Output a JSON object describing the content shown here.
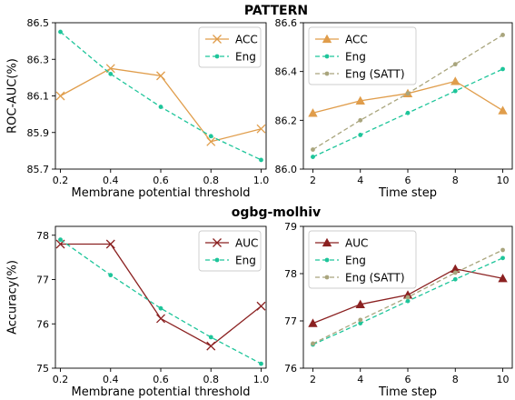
{
  "figure": {
    "row_titles": [
      "PATTERN",
      "ogbg-molhiv"
    ]
  },
  "colors": {
    "acc": "#e09d4b",
    "auc": "#8b2121",
    "eng": "#1ec59a",
    "eng_satt": "#a9a57d"
  },
  "chart_data": [
    {
      "type": "line",
      "panel": "top-left",
      "xlabel": "Membrane potential threshold",
      "ylabel": "ROC-AUC(%)",
      "x": [
        0.2,
        0.4,
        0.6,
        0.8,
        1.0
      ],
      "xticks": [
        "0.2",
        "0.4",
        "0.6",
        "0.8",
        "1.0"
      ],
      "xlim": [
        0.18,
        1.02
      ],
      "ylim": [
        85.7,
        86.5
      ],
      "yticks": [
        "85.7",
        "85.9",
        "86.1",
        "86.3",
        "86.5"
      ],
      "legend": "top-right",
      "series": [
        {
          "name": "ACC",
          "values": [
            86.1,
            86.25,
            86.21,
            85.85,
            85.92
          ],
          "color": "#e09d4b",
          "marker": "x",
          "dash": "solid"
        },
        {
          "name": "Eng",
          "values": [
            86.45,
            86.22,
            86.04,
            85.88,
            85.75
          ],
          "color": "#1ec59a",
          "marker": "dot",
          "dash": "dashed"
        }
      ]
    },
    {
      "type": "line",
      "panel": "top-right",
      "xlabel": "Time step",
      "ylabel": "",
      "x": [
        2,
        4,
        6,
        8,
        10
      ],
      "xticks": [
        "2",
        "4",
        "6",
        "8",
        "10"
      ],
      "xlim": [
        1.6,
        10.4
      ],
      "ylim": [
        86.0,
        86.6
      ],
      "yticks": [
        "86.0",
        "86.2",
        "86.4",
        "86.6"
      ],
      "legend": "top-left",
      "series": [
        {
          "name": "ACC",
          "values": [
            86.23,
            86.28,
            86.31,
            86.36,
            86.24
          ],
          "color": "#e09d4b",
          "marker": "triangle",
          "dash": "solid"
        },
        {
          "name": "Eng",
          "values": [
            86.05,
            86.14,
            86.23,
            86.32,
            86.41
          ],
          "color": "#1ec59a",
          "marker": "dot",
          "dash": "dashed"
        },
        {
          "name": "Eng (SATT)",
          "values": [
            86.08,
            86.2,
            86.31,
            86.43,
            86.55
          ],
          "color": "#a9a57d",
          "marker": "dot",
          "dash": "dashed"
        }
      ]
    },
    {
      "type": "line",
      "panel": "bottom-left",
      "xlabel": "Membrane potential threshold",
      "ylabel": "Accuracy(%)",
      "x": [
        0.2,
        0.4,
        0.6,
        0.8,
        1.0
      ],
      "xticks": [
        "0.2",
        "0.4",
        "0.6",
        "0.8",
        "1.0"
      ],
      "xlim": [
        0.18,
        1.02
      ],
      "ylim": [
        75,
        78.2
      ],
      "yticks": [
        "75",
        "76",
        "77",
        "78"
      ],
      "legend": "top-right",
      "series": [
        {
          "name": "AUC",
          "values": [
            77.8,
            77.8,
            76.12,
            75.5,
            76.4
          ],
          "color": "#8b2121",
          "marker": "x",
          "dash": "solid"
        },
        {
          "name": "Eng",
          "values": [
            77.9,
            77.1,
            76.35,
            75.7,
            75.1
          ],
          "color": "#1ec59a",
          "marker": "dot",
          "dash": "dashed"
        }
      ]
    },
    {
      "type": "line",
      "panel": "bottom-right",
      "xlabel": "Time step",
      "ylabel": "",
      "x": [
        2,
        4,
        6,
        8,
        10
      ],
      "xticks": [
        "2",
        "4",
        "6",
        "8",
        "10"
      ],
      "xlim": [
        1.6,
        10.4
      ],
      "ylim": [
        76,
        79
      ],
      "yticks": [
        "76",
        "77",
        "78",
        "79"
      ],
      "legend": "top-left",
      "series": [
        {
          "name": "AUC",
          "values": [
            76.95,
            77.35,
            77.55,
            78.1,
            77.9
          ],
          "color": "#8b2121",
          "marker": "triangle",
          "dash": "solid"
        },
        {
          "name": "Eng",
          "values": [
            76.5,
            76.95,
            77.42,
            77.88,
            78.33
          ],
          "color": "#1ec59a",
          "marker": "dot",
          "dash": "dashed"
        },
        {
          "name": "Eng (SATT)",
          "values": [
            76.52,
            77.02,
            77.5,
            78.02,
            78.5
          ],
          "color": "#a9a57d",
          "marker": "dot",
          "dash": "dashed"
        }
      ]
    }
  ]
}
